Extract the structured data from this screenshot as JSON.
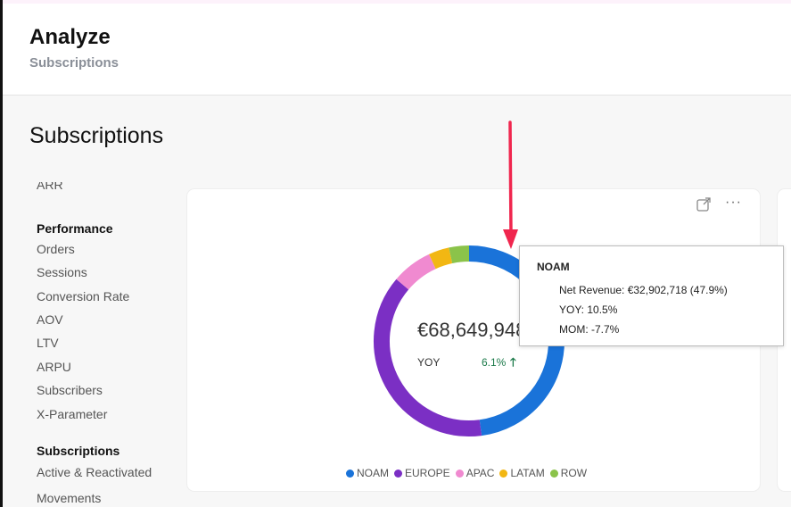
{
  "header": {
    "title": "Analyze",
    "subtitle": "Subscriptions"
  },
  "section": {
    "title": "Subscriptions"
  },
  "sidebar": {
    "partial_item": "ARR",
    "groups": [
      {
        "heading": "Performance",
        "items": [
          "Orders",
          "Sessions",
          "Conversion Rate",
          "AOV",
          "LTV",
          "ARPU",
          "Subscribers",
          "X-Parameter"
        ]
      },
      {
        "heading": "Subscriptions",
        "items": [
          "Active & Reactivated",
          "Movements"
        ]
      }
    ]
  },
  "card": {
    "expand_icon": "expand-icon",
    "more_icon": "more-icon",
    "more_glyph": "···",
    "total": "€68,649,948",
    "yoy_label": "YOY",
    "yoy_value": "6.1%",
    "yoy_arrow": "🡑"
  },
  "chart_data": {
    "type": "pie",
    "donut": true,
    "categories": [
      "NOAM",
      "EUROPE",
      "APAC",
      "LATAM",
      "ROW"
    ],
    "values": [
      47.9,
      38.3,
      6.9,
      3.5,
      3.4
    ],
    "colors": [
      "#1a73d9",
      "#7b2fc4",
      "#f08ad0",
      "#f2b713",
      "#8bc34a"
    ],
    "legend": "bottom"
  },
  "tooltip": {
    "title": "NOAM",
    "net_revenue": "Net Revenue: €32,902,718 (47.9%)",
    "yoy": "YOY: 10.5%",
    "mom": "MOM: -7.7%"
  },
  "colors": {
    "annotation": "#f0264e",
    "positive": "#1c7a4a"
  }
}
